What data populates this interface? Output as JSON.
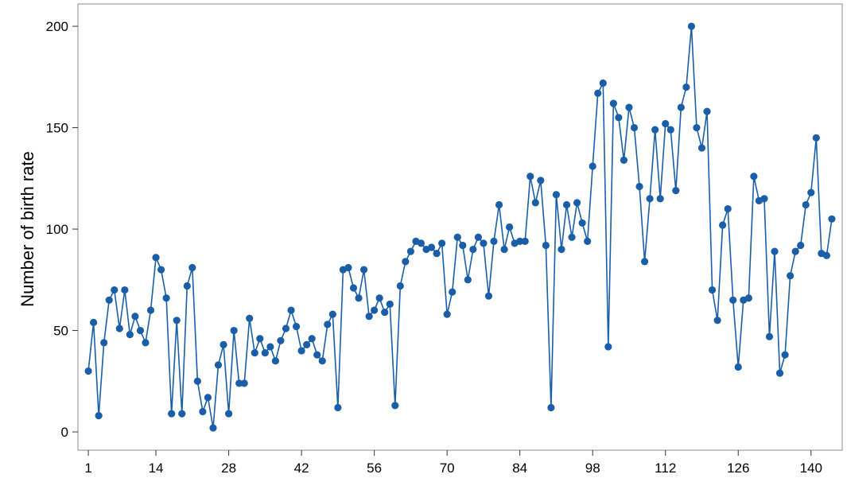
{
  "chart_data": {
    "type": "line",
    "title": "",
    "xlabel": "",
    "ylabel": "Number of birth rate",
    "x_ticks": [
      1,
      14,
      28,
      42,
      56,
      70,
      84,
      98,
      112,
      126,
      140
    ],
    "y_ticks": [
      0,
      50,
      100,
      150,
      200
    ],
    "xlim": [
      -1,
      146
    ],
    "ylim": [
      -9,
      211
    ],
    "grid": false,
    "legend": "none",
    "line_color": "#1a5ea8",
    "series": [
      {
        "x_start": 1,
        "values": [
          30,
          54,
          8,
          44,
          65,
          70,
          51,
          70,
          48,
          57,
          50,
          44,
          60,
          86,
          80,
          66,
          9,
          55,
          9,
          72,
          81,
          25,
          10,
          17,
          2,
          33,
          43,
          9,
          50,
          24,
          24,
          56,
          39,
          46,
          39,
          42,
          35,
          45,
          51,
          60,
          52,
          40,
          43,
          46,
          38,
          35,
          53,
          58,
          12,
          80,
          81,
          71,
          66,
          80,
          57,
          60,
          66,
          59,
          63,
          13,
          72,
          84,
          89,
          94,
          93,
          90,
          91,
          88,
          93,
          58,
          69,
          96,
          92,
          75,
          90,
          96,
          93,
          67,
          94,
          112,
          90,
          101,
          93,
          94,
          94,
          126,
          113,
          124,
          92,
          12,
          117,
          90,
          112,
          96,
          113,
          103,
          94,
          131,
          167,
          172,
          42,
          162,
          155,
          134,
          160,
          150,
          121,
          84,
          115,
          149,
          115,
          152,
          149,
          119,
          160,
          170,
          200,
          150,
          140,
          158,
          70,
          55,
          102,
          110,
          65,
          32,
          65,
          66,
          126,
          114,
          115,
          47,
          89,
          29,
          38,
          77,
          89,
          92,
          112,
          118,
          145,
          88,
          87,
          105
        ]
      }
    ]
  }
}
